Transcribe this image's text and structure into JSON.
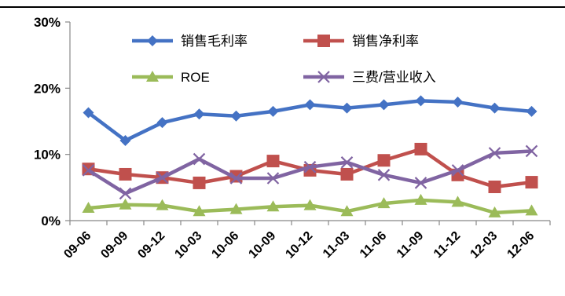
{
  "chart_data": {
    "type": "line",
    "title": "",
    "xlabel": "",
    "ylabel": "",
    "categories": [
      "09-06",
      "09-09",
      "09-12",
      "10-03",
      "10-06",
      "10-09",
      "10-12",
      "11-03",
      "11-06",
      "11-09",
      "11-12",
      "12-03",
      "12-06"
    ],
    "y_ticks": [
      "0%",
      "10%",
      "20%",
      "30%"
    ],
    "ylim": [
      0,
      30
    ],
    "y_unit": "%",
    "grid": false,
    "legend_position": "top",
    "series": [
      {
        "name": "销售毛利率",
        "color": "#4472C4",
        "marker": "diamond",
        "values": [
          16.3,
          12.1,
          14.8,
          16.1,
          15.8,
          16.5,
          17.5,
          17.0,
          17.5,
          18.1,
          17.9,
          17.0,
          16.5
        ]
      },
      {
        "name": "销售净利率",
        "color": "#C0504D",
        "marker": "square",
        "values": [
          7.8,
          7.0,
          6.5,
          5.7,
          6.7,
          9.0,
          7.6,
          7.0,
          9.1,
          10.8,
          6.9,
          5.1,
          5.8
        ]
      },
      {
        "name": "ROE",
        "color": "#9BBB59",
        "marker": "triangle",
        "values": [
          1.9,
          2.4,
          2.3,
          1.4,
          1.7,
          2.1,
          2.3,
          1.4,
          2.6,
          3.1,
          2.8,
          1.2,
          1.5
        ]
      },
      {
        "name": "三费/营业收入",
        "color": "#8064A2",
        "marker": "x",
        "values": [
          7.6,
          4.1,
          6.5,
          9.3,
          6.4,
          6.4,
          8.1,
          8.8,
          6.9,
          5.7,
          7.6,
          10.2,
          10.5
        ]
      }
    ]
  }
}
